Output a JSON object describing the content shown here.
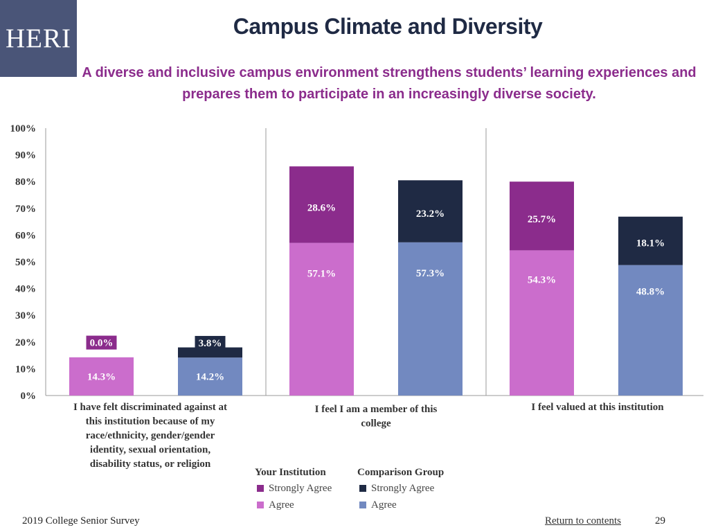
{
  "logo": {
    "text": "HERI"
  },
  "header": {
    "title": "Campus Climate and Diversity",
    "subtitle": "A diverse and inclusive campus environment strengthens students’ learning experiences and prepares them to participate in an increasingly diverse society."
  },
  "legend": {
    "your_institution": {
      "title": "Your Institution",
      "strongly_agree": "Strongly Agree",
      "agree": "Agree"
    },
    "comparison_group": {
      "title": "Comparison Group",
      "strongly_agree": "Strongly Agree",
      "agree": "Agree"
    }
  },
  "footer": {
    "survey": "2019 College Senior Survey",
    "return_link": "Return to contents",
    "page_number": "29"
  },
  "colors": {
    "your_strongly_agree": "#8b2c8c",
    "your_agree": "#cb6dcc",
    "comp_strongly_agree": "#1f2a44",
    "comp_agree": "#7289c0"
  },
  "chart_data": {
    "type": "bar",
    "stacked": true,
    "y_ticks": [
      "0%",
      "10%",
      "20%",
      "30%",
      "40%",
      "50%",
      "60%",
      "70%",
      "80%",
      "90%",
      "100%"
    ],
    "ylim": [
      0,
      100
    ],
    "categories": [
      [
        "I have felt discriminated against at",
        "this institution because of my",
        "race/ethnicity, gender/gender",
        "identity, sexual orientation,",
        "disability status, or religion"
      ],
      [
        "I feel I am a member of this",
        "college"
      ],
      [
        "I feel valued at this institution"
      ]
    ],
    "series": [
      {
        "group": "Your Institution",
        "name": "Agree",
        "values": [
          14.3,
          57.1,
          54.3
        ],
        "labels": [
          "14.3%",
          "57.1%",
          "54.3%"
        ]
      },
      {
        "group": "Your Institution",
        "name": "Strongly Agree",
        "values": [
          0.0,
          28.6,
          25.7
        ],
        "labels": [
          "0.0%",
          "28.6%",
          "25.7%"
        ]
      },
      {
        "group": "Comparison Group",
        "name": "Agree",
        "values": [
          14.2,
          57.3,
          48.8
        ],
        "labels": [
          "14.2%",
          "57.3%",
          "48.8%"
        ]
      },
      {
        "group": "Comparison Group",
        "name": "Strongly Agree",
        "values": [
          3.8,
          23.2,
          18.1
        ],
        "labels": [
          "3.8%",
          "23.2%",
          "18.1%"
        ]
      }
    ]
  }
}
